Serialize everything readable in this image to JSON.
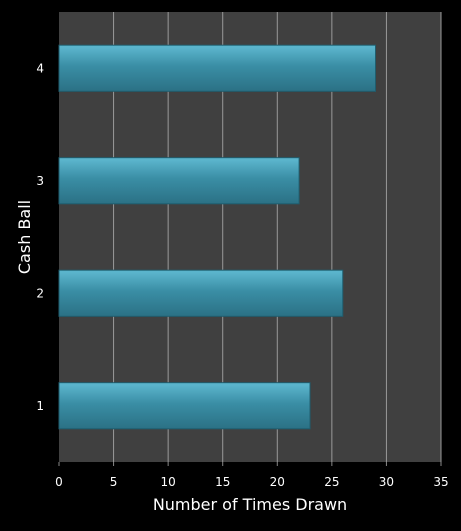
{
  "chart_data": {
    "type": "bar",
    "orientation": "horizontal",
    "categories": [
      "1",
      "2",
      "3",
      "4"
    ],
    "values": [
      23,
      26,
      22,
      29
    ],
    "xlabel": "Number of Times Drawn",
    "ylabel": "Cash Ball",
    "xlim": [
      0,
      35
    ],
    "xticks": [
      0,
      5,
      10,
      15,
      20,
      25,
      30,
      35
    ],
    "grid": true,
    "legend": "none",
    "colors": {
      "background": "#000000",
      "plot_background": "#404040",
      "grid": "#9a9a9a",
      "bar_fill": "#3a8ea5",
      "bar_highlight": "#5ab4cc",
      "bar_edge": "#1f5d6e",
      "text": "#ffffff"
    }
  }
}
